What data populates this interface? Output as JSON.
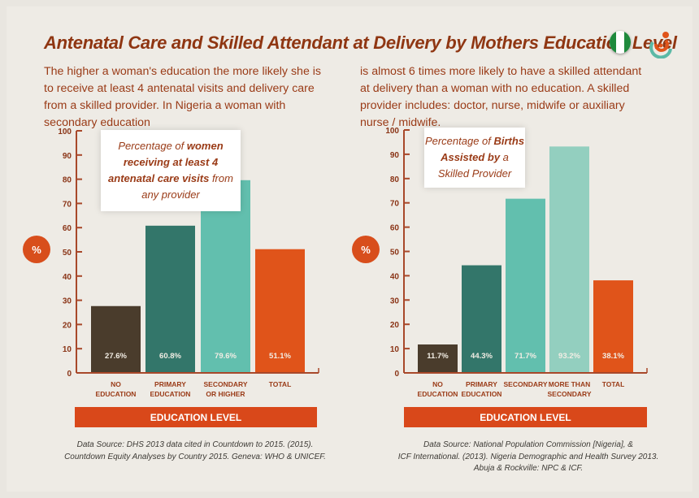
{
  "header": {
    "title": "Antenatal Care and Skilled Attendant at Delivery by Mothers Education Level"
  },
  "intro": {
    "left": "The higher a woman's education the more likely she is to receive at least 4 antenatal visits and delivery care from a skilled provider. In Nigeria a woman with secondary education",
    "right": "is almost 6 times more likely to have a skilled attendant at delivery than a woman with no education. A skilled provider includes: doctor, nurse, midwife or auxiliary nurse / midwife."
  },
  "colors": {
    "no_education": "#4a3c2c",
    "primary": "#33766a",
    "secondary": "#62bfae",
    "more_than_secondary": "#93cfbf",
    "total": "#e0541a",
    "axis": "#a8482a",
    "label": "#9a3b17"
  },
  "chart_data": [
    {
      "type": "bar",
      "title_parts": [
        "Percentage of ",
        "women receiving at least 4 antenatal care visits",
        " from any provider"
      ],
      "categories": [
        [
          "NO",
          "EDUCATION"
        ],
        [
          "PRIMARY",
          "EDUCATION"
        ],
        [
          "SECONDARY",
          "OR HIGHER"
        ],
        [
          "TOTAL"
        ]
      ],
      "values": [
        27.6,
        60.8,
        79.6,
        51.1
      ],
      "data_labels": [
        "27.6%",
        "60.8%",
        "79.6%",
        "51.1%"
      ],
      "color_keys": [
        "no_education",
        "primary",
        "secondary",
        "total"
      ],
      "ylabel": "%",
      "xlabel": "EDUCATION LEVEL",
      "ylim": [
        0,
        100
      ],
      "yticks": [
        0,
        10,
        20,
        30,
        40,
        50,
        60,
        70,
        80,
        90,
        100
      ],
      "source": [
        "Data Source: DHS 2013 data cited in Countdown to 2015. (2015).",
        "Countdown Equity Analyses by Country 2015. Geneva: WHO & UNICEF."
      ]
    },
    {
      "type": "bar",
      "title_parts": [
        "Percentage of ",
        "Births Assisted by",
        " a Skilled Provider"
      ],
      "categories": [
        [
          "NO",
          "EDUCATION"
        ],
        [
          "PRIMARY",
          "EDUCATION"
        ],
        [
          "SECONDARY"
        ],
        [
          "MORE THAN",
          "SECONDARY"
        ],
        [
          "TOTAL"
        ]
      ],
      "values": [
        11.7,
        44.3,
        71.7,
        93.2,
        38.1
      ],
      "data_labels": [
        "11.7%",
        "44.3%",
        "71.7%",
        "93.2%",
        "38.1%"
      ],
      "color_keys": [
        "no_education",
        "primary",
        "secondary",
        "more_than_secondary",
        "total"
      ],
      "ylabel": "%",
      "xlabel": "EDUCATION LEVEL",
      "ylim": [
        0,
        100
      ],
      "yticks": [
        0,
        10,
        20,
        30,
        40,
        50,
        60,
        70,
        80,
        90,
        100
      ],
      "source": [
        "Data Source: National Population Commission [Nigeria], &",
        "ICF International. (2013). Nigeria Demographic and Health Survey 2013.",
        "Abuja & Rockville: NPC & ICF."
      ]
    }
  ]
}
